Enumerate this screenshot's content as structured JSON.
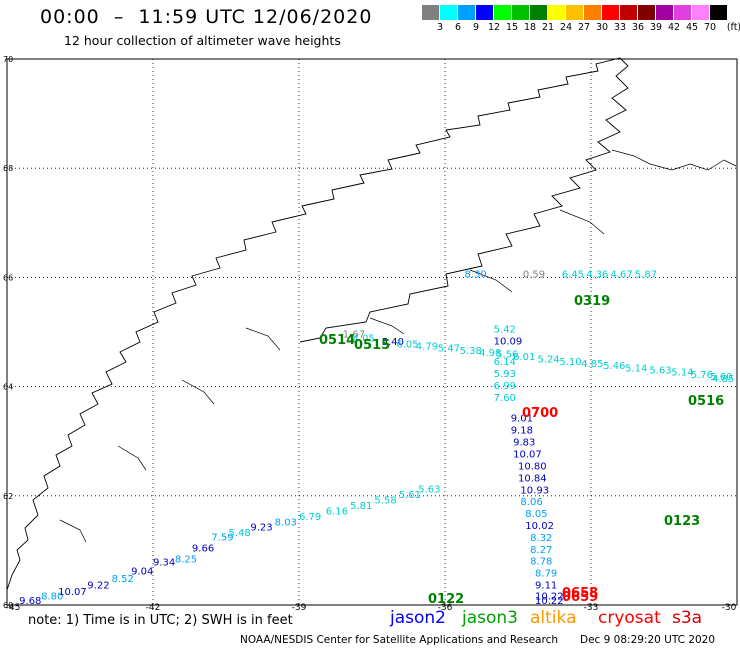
{
  "header": {
    "title": "00:00  –  11:59 UTC 12/06/2020",
    "subtitle": "12 hour collection of altimeter wave heights"
  },
  "colorbar": {
    "unit": "(ft)",
    "bins": [
      {
        "label": "3",
        "color": "#808080"
      },
      {
        "label": "6",
        "color": "#00ffff"
      },
      {
        "label": "9",
        "color": "#00a0ff"
      },
      {
        "label": "12",
        "color": "#0000ff"
      },
      {
        "label": "15",
        "color": "#00ff00"
      },
      {
        "label": "18",
        "color": "#00c000"
      },
      {
        "label": "21",
        "color": "#008000"
      },
      {
        "label": "24",
        "color": "#ffff00"
      },
      {
        "label": "27",
        "color": "#ffc000"
      },
      {
        "label": "30",
        "color": "#ff8000"
      },
      {
        "label": "33",
        "color": "#ff0000"
      },
      {
        "label": "36",
        "color": "#c00000"
      },
      {
        "label": "39",
        "color": "#800000"
      },
      {
        "label": "42",
        "color": "#a000a0"
      },
      {
        "label": "45",
        "color": "#e040e0"
      },
      {
        "label": "70",
        "color": "#ff80ff"
      },
      {
        "label": "",
        "color": "#000000"
      }
    ]
  },
  "map": {
    "lon_range": [
      -45,
      -30
    ],
    "lat_range": [
      60,
      70
    ],
    "lat_ticks": [
      {
        "value": 70,
        "label": "70"
      },
      {
        "value": 68,
        "label": "68"
      },
      {
        "value": 66,
        "label": "66"
      },
      {
        "value": 64,
        "label": "64"
      },
      {
        "value": 62,
        "label": "62"
      },
      {
        "value": 60,
        "label": "60"
      }
    ],
    "lon_ticks": [
      {
        "value": -45,
        "label": "-45"
      },
      {
        "value": -42,
        "label": "-42"
      },
      {
        "value": -39,
        "label": "-39"
      },
      {
        "value": -36,
        "label": "-36"
      },
      {
        "value": -33,
        "label": "-33"
      },
      {
        "value": -30,
        "label": "-30"
      }
    ],
    "swh_labels": [
      {
        "lon": -38.1,
        "lat": 64.9,
        "text": "1.67",
        "color": "#808080"
      },
      {
        "lon": -37.9,
        "lat": 64.83,
        "text": "4.05",
        "color": "#00d0d0"
      },
      {
        "lon": -37.3,
        "lat": 64.76,
        "text": "5.40",
        "color": "#0000c0"
      },
      {
        "lon": -37.0,
        "lat": 64.72,
        "text": "6.05",
        "color": "#00d0d0"
      },
      {
        "lon": -36.6,
        "lat": 64.68,
        "text": "4.79",
        "color": "#00d0d0"
      },
      {
        "lon": -36.15,
        "lat": 64.64,
        "text": "5.47",
        "color": "#00d0d0"
      },
      {
        "lon": -35.7,
        "lat": 64.6,
        "text": "5.38",
        "color": "#00d0d0"
      },
      {
        "lon": -35.3,
        "lat": 64.56,
        "text": "4.98",
        "color": "#00d0d0"
      },
      {
        "lon": -34.95,
        "lat": 64.53,
        "text": "5.56",
        "color": "#00d0d0"
      },
      {
        "lon": -34.6,
        "lat": 64.49,
        "text": "6.01",
        "color": "#00d0d0"
      },
      {
        "lon": -34.1,
        "lat": 64.44,
        "text": "5.24",
        "color": "#00d0d0"
      },
      {
        "lon": -33.65,
        "lat": 64.4,
        "text": "5.10",
        "color": "#00d0d0"
      },
      {
        "lon": -33.2,
        "lat": 64.36,
        "text": "4.85",
        "color": "#00d0d0"
      },
      {
        "lon": -32.75,
        "lat": 64.32,
        "text": "5.46",
        "color": "#00d0d0"
      },
      {
        "lon": -32.3,
        "lat": 64.28,
        "text": "5.14",
        "color": "#00d0d0"
      },
      {
        "lon": -31.8,
        "lat": 64.24,
        "text": "5.63",
        "color": "#00d0d0"
      },
      {
        "lon": -31.35,
        "lat": 64.2,
        "text": "5.14",
        "color": "#00d0d0"
      },
      {
        "lon": -30.95,
        "lat": 64.16,
        "text": "5.76",
        "color": "#00d0d0"
      },
      {
        "lon": -30.55,
        "lat": 64.12,
        "text": "5.60",
        "color": "#00d0d0"
      },
      {
        "lon": -30.15,
        "lat": 64.08,
        "text": "4.85",
        "color": "#00d0d0"
      },
      {
        "lon": -35.0,
        "lat": 64.99,
        "text": "5.42",
        "color": "#00d0d0"
      },
      {
        "lon": -35.0,
        "lat": 64.77,
        "text": "10.09",
        "color": "#0000c0"
      },
      {
        "lon": -35.0,
        "lat": 64.4,
        "text": "6.14",
        "color": "#00d0d0"
      },
      {
        "lon": -35.0,
        "lat": 64.18,
        "text": "5.93",
        "color": "#00d0d0"
      },
      {
        "lon": -35.0,
        "lat": 63.96,
        "text": "6.99",
        "color": "#00d0d0"
      },
      {
        "lon": -35.0,
        "lat": 63.74,
        "text": "7.60",
        "color": "#00d0d0"
      },
      {
        "lon": -34.65,
        "lat": 63.36,
        "text": "9.01",
        "color": "#0000c0"
      },
      {
        "lon": -34.65,
        "lat": 63.14,
        "text": "9.18",
        "color": "#0000c0"
      },
      {
        "lon": -34.6,
        "lat": 62.92,
        "text": "9.83",
        "color": "#0000c0"
      },
      {
        "lon": -34.6,
        "lat": 62.7,
        "text": "10.07",
        "color": "#0000c0"
      },
      {
        "lon": -34.5,
        "lat": 62.48,
        "text": "10.80",
        "color": "#0000c0"
      },
      {
        "lon": -34.5,
        "lat": 62.26,
        "text": "10.84",
        "color": "#0000c0"
      },
      {
        "lon": -34.45,
        "lat": 62.04,
        "text": "10.93",
        "color": "#0000c0"
      },
      {
        "lon": -34.45,
        "lat": 61.83,
        "text": "8.06",
        "color": "#00a0ff"
      },
      {
        "lon": -34.35,
        "lat": 61.61,
        "text": "8.05",
        "color": "#00a0ff"
      },
      {
        "lon": -34.35,
        "lat": 61.39,
        "text": "10.02",
        "color": "#0000c0"
      },
      {
        "lon": -34.25,
        "lat": 61.17,
        "text": "8.32",
        "color": "#00a0ff"
      },
      {
        "lon": -34.25,
        "lat": 60.95,
        "text": "8.27",
        "color": "#00a0ff"
      },
      {
        "lon": -34.25,
        "lat": 60.74,
        "text": "8.78",
        "color": "#00a0ff"
      },
      {
        "lon": -34.15,
        "lat": 60.52,
        "text": "8.79",
        "color": "#00a0ff"
      },
      {
        "lon": -34.15,
        "lat": 60.3,
        "text": "9.11",
        "color": "#0000c0"
      },
      {
        "lon": -34.15,
        "lat": 60.1,
        "text": "10.22",
        "color": "#0000c0"
      },
      {
        "lon": -34.15,
        "lat": 60.02,
        "text": "10.22",
        "color": "#0000c0"
      },
      {
        "lon": -44.75,
        "lat": 60.02,
        "text": "9.68",
        "color": "#0000c0"
      },
      {
        "lon": -44.3,
        "lat": 60.1,
        "text": "8.80",
        "color": "#00a0ff"
      },
      {
        "lon": -43.95,
        "lat": 60.18,
        "text": "10.07",
        "color": "#0000c0"
      },
      {
        "lon": -43.35,
        "lat": 60.3,
        "text": "9.22",
        "color": "#0000c0"
      },
      {
        "lon": -42.85,
        "lat": 60.42,
        "text": "8.52",
        "color": "#00a0ff"
      },
      {
        "lon": -42.45,
        "lat": 60.56,
        "text": "9.04",
        "color": "#0000c0"
      },
      {
        "lon": -42.0,
        "lat": 60.72,
        "text": "9.34",
        "color": "#0000c0"
      },
      {
        "lon": -41.55,
        "lat": 60.78,
        "text": "8.25",
        "color": "#00a0ff"
      },
      {
        "lon": -41.2,
        "lat": 60.98,
        "text": "9.66",
        "color": "#0000c0"
      },
      {
        "lon": -40.8,
        "lat": 61.18,
        "text": "7.59",
        "color": "#00a0ff"
      },
      {
        "lon": -40.45,
        "lat": 61.26,
        "text": "5.48",
        "color": "#00d0d0"
      },
      {
        "lon": -40.0,
        "lat": 61.36,
        "text": "9.23",
        "color": "#0000c0"
      },
      {
        "lon": -39.5,
        "lat": 61.46,
        "text": "8.03",
        "color": "#00a0ff"
      },
      {
        "lon": -39.0,
        "lat": 61.56,
        "text": "6.79",
        "color": "#00d0d0"
      },
      {
        "lon": -38.45,
        "lat": 61.66,
        "text": "6.16",
        "color": "#00d0d0"
      },
      {
        "lon": -37.95,
        "lat": 61.76,
        "text": "5.81",
        "color": "#00d0d0"
      },
      {
        "lon": -37.45,
        "lat": 61.86,
        "text": "5.58",
        "color": "#00d0d0"
      },
      {
        "lon": -36.95,
        "lat": 61.96,
        "text": "5.61",
        "color": "#00d0d0"
      },
      {
        "lon": -36.55,
        "lat": 62.06,
        "text": "5.63",
        "color": "#00d0d0"
      },
      {
        "lon": -35.6,
        "lat": 66.0,
        "text": "8.30",
        "color": "#00a0ff"
      },
      {
        "lon": -34.4,
        "lat": 66.0,
        "text": "0.59",
        "color": "#808080"
      },
      {
        "lon": -33.6,
        "lat": 66.0,
        "text": "6.45",
        "color": "#00d0d0"
      },
      {
        "lon": -33.1,
        "lat": 66.0,
        "text": "4.36",
        "color": "#00d0d0"
      },
      {
        "lon": -32.6,
        "lat": 66.0,
        "text": "4.67",
        "color": "#00d0d0"
      },
      {
        "lon": -32.1,
        "lat": 66.0,
        "text": "5.87",
        "color": "#00d0d0"
      }
    ],
    "pass_labels": [
      {
        "text": "0514",
        "color": "#008000"
      },
      {
        "text": "0515",
        "color": "#008000"
      },
      {
        "text": "0319",
        "color": "#008000"
      },
      {
        "text": "0516",
        "color": "#008000"
      },
      {
        "text": "0700",
        "color": "#ff0000"
      },
      {
        "text": "0123",
        "color": "#008000"
      },
      {
        "text": "0122",
        "color": "#008000"
      },
      {
        "text": "0658",
        "color": "#ff0000"
      },
      {
        "text": "0659",
        "color": "#ff0000"
      }
    ]
  },
  "footer": {
    "note": "note:  1) Time is in UTC;  2) SWH is in feet",
    "satellites": [
      {
        "name": "jason2",
        "color": "#0000ff"
      },
      {
        "name": "jason3",
        "color": "#00a000"
      },
      {
        "name": "altika",
        "color": "#ff9900"
      },
      {
        "name": "cryosat",
        "color": "#ff0000"
      },
      {
        "name": "s3a",
        "color": "#cc0000"
      }
    ],
    "credit": "NOAA/NESDIS Center for Satellite Applications and Research",
    "timestamp": "Dec  9 08:29:20 UTC 2020"
  }
}
